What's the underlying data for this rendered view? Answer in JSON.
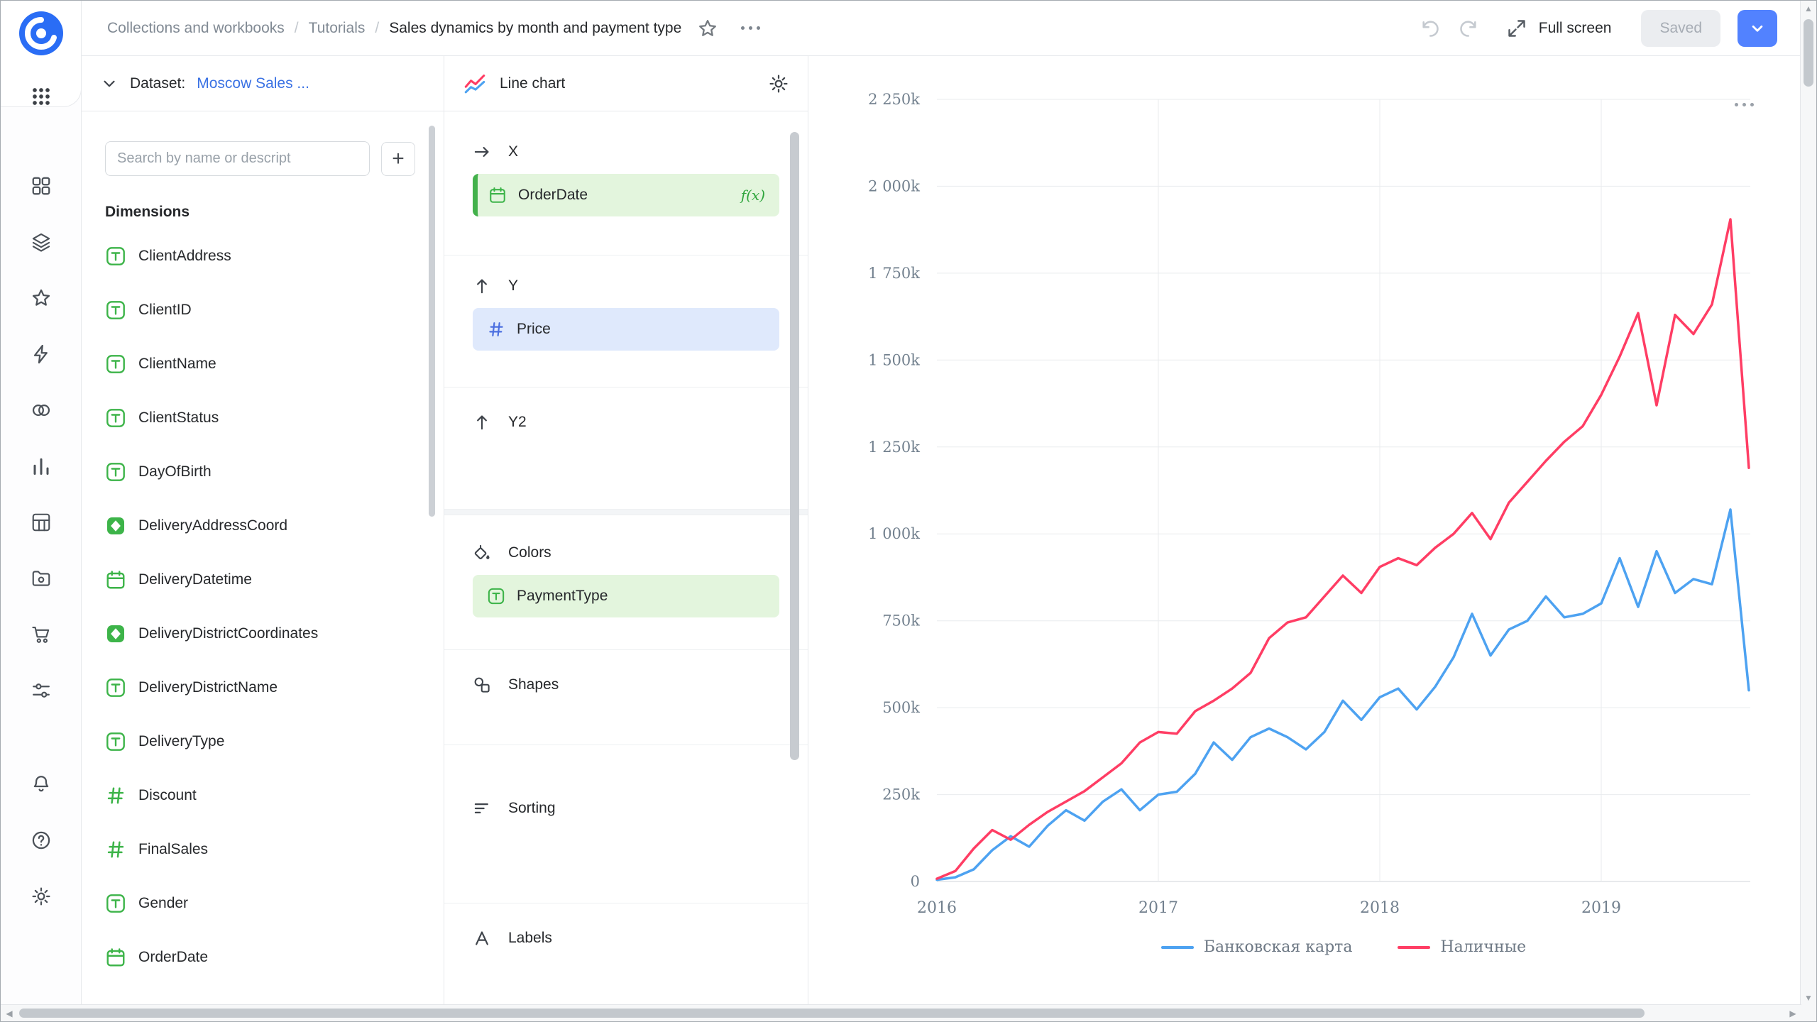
{
  "header": {
    "breadcrumbs": [
      {
        "label": "Collections and workbooks"
      },
      {
        "label": "Tutorials"
      },
      {
        "label": "Sales dynamics by month and payment type"
      }
    ],
    "full_screen_label": "Full screen",
    "saved_label": "Saved"
  },
  "sidebar": {
    "main_icons": [
      "widgets",
      "layers",
      "star",
      "bolt",
      "circles",
      "bar-chart",
      "table",
      "folder",
      "cart",
      "filters"
    ],
    "bottom_icons": [
      "bell",
      "help",
      "settings"
    ]
  },
  "dataset_panel": {
    "dataset_label": "Dataset:",
    "dataset_name": "Moscow Sales ...",
    "search_placeholder": "Search by name or descript",
    "add_label": "+",
    "dimensions_title": "Dimensions",
    "fields": [
      {
        "name": "ClientAddress",
        "type": "string"
      },
      {
        "name": "ClientID",
        "type": "string"
      },
      {
        "name": "ClientName",
        "type": "string"
      },
      {
        "name": "ClientStatus",
        "type": "string"
      },
      {
        "name": "DayOfBirth",
        "type": "string"
      },
      {
        "name": "DeliveryAddressCoord",
        "type": "geo"
      },
      {
        "name": "DeliveryDatetime",
        "type": "date"
      },
      {
        "name": "DeliveryDistrictCoordinates",
        "type": "geo"
      },
      {
        "name": "DeliveryDistrictName",
        "type": "string"
      },
      {
        "name": "DeliveryType",
        "type": "string"
      },
      {
        "name": "Discount",
        "type": "number"
      },
      {
        "name": "FinalSales",
        "type": "number"
      },
      {
        "name": "Gender",
        "type": "string"
      },
      {
        "name": "OrderDate",
        "type": "date"
      }
    ]
  },
  "config_panel": {
    "chart_type_label": "Line chart",
    "sections": {
      "x": {
        "label": "X",
        "field": {
          "name": "OrderDate",
          "type": "date",
          "formula_badge": "f(x)"
        }
      },
      "y": {
        "label": "Y",
        "field": {
          "name": "Price",
          "type": "number"
        }
      },
      "y2": {
        "label": "Y2"
      },
      "colors": {
        "label": "Colors",
        "field": {
          "name": "PaymentType",
          "type": "string"
        }
      },
      "shapes": {
        "label": "Shapes"
      },
      "sorting": {
        "label": "Sorting"
      },
      "labels": {
        "label": "Labels"
      }
    }
  },
  "chart_data": {
    "type": "line",
    "x": [
      "2016-01",
      "2016-02",
      "2016-03",
      "2016-04",
      "2016-05",
      "2016-06",
      "2016-07",
      "2016-08",
      "2016-09",
      "2016-10",
      "2016-11",
      "2016-12",
      "2017-01",
      "2017-02",
      "2017-03",
      "2017-04",
      "2017-05",
      "2017-06",
      "2017-07",
      "2017-08",
      "2017-09",
      "2017-10",
      "2017-11",
      "2017-12",
      "2018-01",
      "2018-02",
      "2018-03",
      "2018-04",
      "2018-05",
      "2018-06",
      "2018-07",
      "2018-08",
      "2018-09",
      "2018-10",
      "2018-11",
      "2018-12",
      "2019-01",
      "2019-02",
      "2019-03",
      "2019-04",
      "2019-05",
      "2019-06",
      "2019-07",
      "2019-08",
      "2019-09"
    ],
    "series": [
      {
        "name": "Банковская карта",
        "color": "#4DA2F1",
        "values": [
          5000,
          12000,
          35000,
          90000,
          130000,
          100000,
          160000,
          205000,
          175000,
          230000,
          265000,
          205000,
          250000,
          258000,
          310000,
          400000,
          350000,
          415000,
          440000,
          415000,
          380000,
          430000,
          520000,
          465000,
          530000,
          555000,
          495000,
          560000,
          645000,
          770000,
          650000,
          725000,
          750000,
          820000,
          760000,
          770000,
          800000,
          930000,
          790000,
          950000,
          830000,
          870000,
          855000,
          1070000,
          550000
        ]
      },
      {
        "name": "Наличные",
        "color": "#FF3D64",
        "values": [
          8000,
          30000,
          95000,
          148000,
          120000,
          163000,
          200000,
          230000,
          260000,
          300000,
          340000,
          400000,
          430000,
          425000,
          490000,
          520000,
          555000,
          600000,
          700000,
          745000,
          760000,
          820000,
          880000,
          830000,
          905000,
          930000,
          910000,
          960000,
          1000000,
          1060000,
          985000,
          1090000,
          1150000,
          1210000,
          1265000,
          1310000,
          1400000,
          1510000,
          1635000,
          1370000,
          1630000,
          1575000,
          1660000,
          1905000,
          1190000
        ]
      }
    ],
    "y_ticks": [
      {
        "value": 0,
        "label": "0"
      },
      {
        "value": 250000,
        "label": "250k"
      },
      {
        "value": 500000,
        "label": "500k"
      },
      {
        "value": 750000,
        "label": "750k"
      },
      {
        "value": 1000000,
        "label": "1 000k"
      },
      {
        "value": 1250000,
        "label": "1 250k"
      },
      {
        "value": 1500000,
        "label": "1 500k"
      },
      {
        "value": 1750000,
        "label": "1 750k"
      },
      {
        "value": 2000000,
        "label": "2 000k"
      },
      {
        "value": 2250000,
        "label": "2 250k"
      }
    ],
    "x_ticks": [
      {
        "month_index": 0,
        "label": "2016"
      },
      {
        "month_index": 12,
        "label": "2017"
      },
      {
        "month_index": 24,
        "label": "2018"
      },
      {
        "month_index": 36,
        "label": "2019"
      }
    ],
    "ylim": [
      0,
      2250000
    ],
    "grid": true,
    "legend_position": "bottom",
    "title": ""
  }
}
